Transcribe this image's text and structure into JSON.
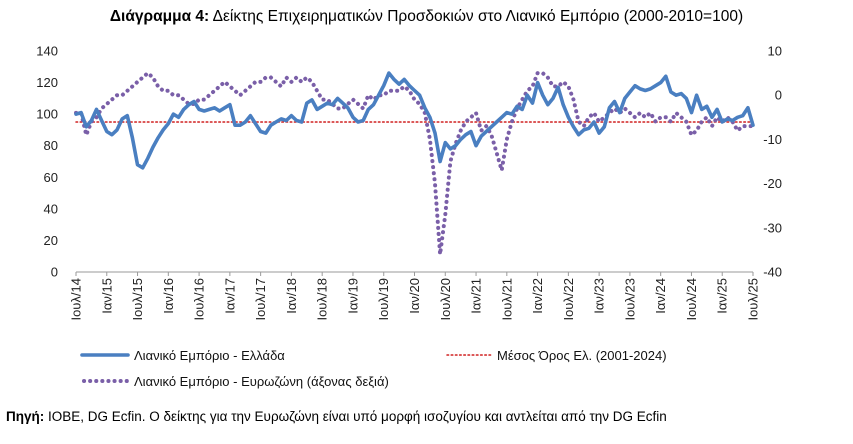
{
  "title": {
    "bold": "Διάγραμμα 4:",
    "text": " Δείκτης Επιχειρηματικών Προσδοκιών στο Λιανικό Εμπόριο (2000-2010=100)"
  },
  "source": {
    "bold": "Πηγή:",
    "text": " IOBE, DG Ecfin. Ο δείκτης για την Ευρωζώνη είναι υπό μορφή ισοζυγίου και αντλείται από την DG Ecfin"
  },
  "colors": {
    "greece": "#4a7fc1",
    "eurozone": "#7a5fa8",
    "mean": "#d02020",
    "axis": "#9a9a9a"
  },
  "chart_data": {
    "type": "line",
    "title": "Δείκτης Επιχειρηματικών Προσδοκιών στο Λιανικό Εμπόριο (2000-2010=100)",
    "x_tick_labels": [
      "Ιουλ/14",
      "Ιαν/15",
      "Ιουλ/15",
      "Ιαν/16",
      "Ιουλ/16",
      "Ιαν/17",
      "Ιουλ/17",
      "Ιαν/18",
      "Ιουλ/18",
      "Ιαν/19",
      "Ιουλ/19",
      "Ιαν/20",
      "Ιουλ/20",
      "Ιαν/21",
      "Ιουλ/21",
      "Ιαν/22",
      "Ιουλ/22",
      "Ιαν/23",
      "Ιουλ/23",
      "Ιαν/24",
      "Ιουλ/24",
      "Ιαν/25",
      "Ιουλ/25"
    ],
    "y_left": {
      "min": 0,
      "max": 140,
      "ticks": [
        0,
        20,
        40,
        60,
        80,
        100,
        120,
        140
      ]
    },
    "y_right": {
      "min": -40,
      "max": 10,
      "ticks": [
        -40,
        -30,
        -20,
        -10,
        0,
        10
      ]
    },
    "grid": false,
    "legend_position": "bottom",
    "series": [
      {
        "name": "Λιανικό Εμπόριο  - Ελλάδα",
        "axis": "left",
        "style": "solid",
        "values": [
          [
            0,
            100
          ],
          [
            1,
            101
          ],
          [
            2,
            92
          ],
          [
            3,
            96
          ],
          [
            4,
            103
          ],
          [
            5,
            96
          ],
          [
            6,
            89
          ],
          [
            7,
            87
          ],
          [
            8,
            90
          ],
          [
            9,
            97
          ],
          [
            10,
            99
          ],
          [
            11,
            85
          ],
          [
            12,
            68
          ],
          [
            13,
            66
          ],
          [
            14,
            72
          ],
          [
            15,
            79
          ],
          [
            16,
            85
          ],
          [
            17,
            90
          ],
          [
            18,
            94
          ],
          [
            19,
            100
          ],
          [
            20,
            98
          ],
          [
            21,
            103
          ],
          [
            22,
            106
          ],
          [
            23,
            108
          ],
          [
            24,
            103
          ],
          [
            25,
            102
          ],
          [
            26,
            103
          ],
          [
            27,
            104
          ],
          [
            28,
            102
          ],
          [
            29,
            104
          ],
          [
            30,
            106
          ],
          [
            31,
            93
          ],
          [
            32,
            93
          ],
          [
            33,
            95
          ],
          [
            34,
            99
          ],
          [
            35,
            94
          ],
          [
            36,
            89
          ],
          [
            37,
            88
          ],
          [
            38,
            93
          ],
          [
            39,
            95
          ],
          [
            40,
            97
          ],
          [
            41,
            96
          ],
          [
            42,
            99
          ],
          [
            43,
            96
          ],
          [
            44,
            95
          ],
          [
            45,
            107
          ],
          [
            46,
            109
          ],
          [
            47,
            103
          ],
          [
            48,
            105
          ],
          [
            49,
            107
          ],
          [
            50,
            106
          ],
          [
            51,
            110
          ],
          [
            52,
            107
          ],
          [
            53,
            104
          ],
          [
            54,
            98
          ],
          [
            55,
            95
          ],
          [
            56,
            96
          ],
          [
            57,
            103
          ],
          [
            58,
            106
          ],
          [
            59,
            112
          ],
          [
            60,
            118
          ],
          [
            61,
            126
          ],
          [
            62,
            122
          ],
          [
            63,
            119
          ],
          [
            64,
            122
          ],
          [
            65,
            118
          ],
          [
            66,
            115
          ],
          [
            67,
            112
          ],
          [
            68,
            104
          ],
          [
            69,
            98
          ],
          [
            70,
            88
          ],
          [
            71,
            70
          ],
          [
            72,
            82
          ],
          [
            73,
            78
          ],
          [
            74,
            80
          ],
          [
            75,
            84
          ],
          [
            76,
            87
          ],
          [
            77,
            89
          ],
          [
            78,
            80
          ],
          [
            79,
            86
          ],
          [
            80,
            89
          ],
          [
            81,
            92
          ],
          [
            82,
            95
          ],
          [
            83,
            98
          ],
          [
            84,
            101
          ],
          [
            85,
            100
          ],
          [
            86,
            105
          ],
          [
            87,
            103
          ],
          [
            88,
            112
          ],
          [
            89,
            107
          ],
          [
            90,
            120
          ],
          [
            91,
            112
          ],
          [
            92,
            106
          ],
          [
            93,
            110
          ],
          [
            94,
            117
          ],
          [
            95,
            106
          ],
          [
            96,
            98
          ],
          [
            97,
            92
          ],
          [
            98,
            87
          ],
          [
            99,
            90
          ],
          [
            100,
            91
          ],
          [
            101,
            95
          ],
          [
            102,
            88
          ],
          [
            103,
            92
          ],
          [
            104,
            104
          ],
          [
            105,
            108
          ],
          [
            106,
            101
          ],
          [
            107,
            110
          ],
          [
            108,
            114
          ],
          [
            109,
            118
          ],
          [
            110,
            116
          ],
          [
            111,
            115
          ],
          [
            112,
            116
          ],
          [
            113,
            118
          ],
          [
            114,
            120
          ],
          [
            115,
            124
          ],
          [
            116,
            114
          ],
          [
            117,
            112
          ],
          [
            118,
            113
          ],
          [
            119,
            110
          ],
          [
            120,
            101
          ],
          [
            121,
            112
          ],
          [
            122,
            103
          ],
          [
            123,
            105
          ],
          [
            124,
            98
          ],
          [
            125,
            103
          ],
          [
            126,
            95
          ],
          [
            127,
            97
          ],
          [
            128,
            96
          ],
          [
            129,
            98
          ],
          [
            130,
            99
          ],
          [
            131,
            104
          ],
          [
            132,
            93
          ]
        ]
      },
      {
        "name": "Μέσος Όρος Ελ.  (2001-2024)",
        "axis": "left",
        "style": "dotted",
        "value": 95
      },
      {
        "name": "Λιανικό Εμπόριο - Ευρωζώνη (άξονας δεξιά)",
        "axis": "right",
        "style": "dotted",
        "values": [
          [
            0,
            -4
          ],
          [
            1,
            -4
          ],
          [
            2,
            -9
          ],
          [
            3,
            -6
          ],
          [
            4,
            -5
          ],
          [
            5,
            -3
          ],
          [
            6,
            -2
          ],
          [
            7,
            -1
          ],
          [
            8,
            0
          ],
          [
            9,
            0
          ],
          [
            10,
            1
          ],
          [
            11,
            2
          ],
          [
            12,
            3
          ],
          [
            13,
            4
          ],
          [
            14,
            5
          ],
          [
            15,
            4
          ],
          [
            16,
            2
          ],
          [
            17,
            1
          ],
          [
            18,
            1
          ],
          [
            19,
            0
          ],
          [
            20,
            0
          ],
          [
            21,
            -1
          ],
          [
            22,
            -2
          ],
          [
            23,
            -2
          ],
          [
            24,
            -1
          ],
          [
            25,
            -1
          ],
          [
            26,
            0
          ],
          [
            27,
            1
          ],
          [
            28,
            2
          ],
          [
            29,
            3
          ],
          [
            30,
            2
          ],
          [
            31,
            1
          ],
          [
            32,
            0
          ],
          [
            33,
            1
          ],
          [
            34,
            2
          ],
          [
            35,
            3
          ],
          [
            36,
            3
          ],
          [
            37,
            4
          ],
          [
            38,
            4
          ],
          [
            39,
            3
          ],
          [
            40,
            2
          ],
          [
            41,
            4
          ],
          [
            42,
            3
          ],
          [
            43,
            4
          ],
          [
            44,
            3
          ],
          [
            45,
            4
          ],
          [
            46,
            3
          ],
          [
            47,
            1
          ],
          [
            48,
            -1
          ],
          [
            49,
            -1
          ],
          [
            50,
            -2
          ],
          [
            51,
            -3
          ],
          [
            52,
            -3
          ],
          [
            53,
            -2
          ],
          [
            54,
            -1
          ],
          [
            55,
            -2
          ],
          [
            56,
            -3
          ],
          [
            57,
            0
          ],
          [
            58,
            -1
          ],
          [
            59,
            0
          ],
          [
            60,
            0
          ],
          [
            61,
            1
          ],
          [
            62,
            1
          ],
          [
            63,
            1
          ],
          [
            64,
            2
          ],
          [
            65,
            1
          ],
          [
            66,
            -1
          ],
          [
            67,
            -2
          ],
          [
            68,
            -4
          ],
          [
            69,
            -10
          ],
          [
            70,
            -20
          ],
          [
            71,
            -36
          ],
          [
            72,
            -27
          ],
          [
            73,
            -15
          ],
          [
            74,
            -11
          ],
          [
            75,
            -8
          ],
          [
            76,
            -6
          ],
          [
            77,
            -5
          ],
          [
            78,
            -4
          ],
          [
            79,
            -8
          ],
          [
            80,
            -7
          ],
          [
            81,
            -9
          ],
          [
            82,
            -13
          ],
          [
            83,
            -17
          ],
          [
            84,
            -10
          ],
          [
            85,
            -6
          ],
          [
            86,
            -3
          ],
          [
            87,
            -1
          ],
          [
            88,
            1
          ],
          [
            89,
            2
          ],
          [
            90,
            5
          ],
          [
            91,
            5
          ],
          [
            92,
            4
          ],
          [
            93,
            2
          ],
          [
            94,
            2
          ],
          [
            95,
            3
          ],
          [
            96,
            2
          ],
          [
            97,
            -1
          ],
          [
            98,
            -6
          ],
          [
            99,
            -7
          ],
          [
            100,
            -5
          ],
          [
            101,
            -4
          ],
          [
            102,
            -6
          ],
          [
            103,
            -5
          ],
          [
            104,
            -4
          ],
          [
            105,
            -3
          ],
          [
            106,
            -4
          ],
          [
            107,
            -3
          ],
          [
            108,
            -4
          ],
          [
            109,
            -5
          ],
          [
            110,
            -4
          ],
          [
            111,
            -5
          ],
          [
            112,
            -4
          ],
          [
            113,
            -6
          ],
          [
            114,
            -5
          ],
          [
            115,
            -5
          ],
          [
            116,
            -6
          ],
          [
            117,
            -4
          ],
          [
            118,
            -5
          ],
          [
            119,
            -6
          ],
          [
            120,
            -9
          ],
          [
            121,
            -8
          ],
          [
            122,
            -6
          ],
          [
            123,
            -5
          ],
          [
            124,
            -7
          ],
          [
            125,
            -5
          ],
          [
            126,
            -6
          ],
          [
            127,
            -5
          ],
          [
            128,
            -6
          ],
          [
            129,
            -8
          ],
          [
            130,
            -7
          ],
          [
            131,
            -7
          ],
          [
            132,
            -7
          ]
        ]
      }
    ],
    "legend": [
      "Λιανικό Εμπόριο  - Ελλάδα",
      "Μέσος Όρος Ελ.  (2001-2024)",
      "Λιανικό Εμπόριο - Ευρωζώνη (άξονας δεξιά)"
    ]
  }
}
